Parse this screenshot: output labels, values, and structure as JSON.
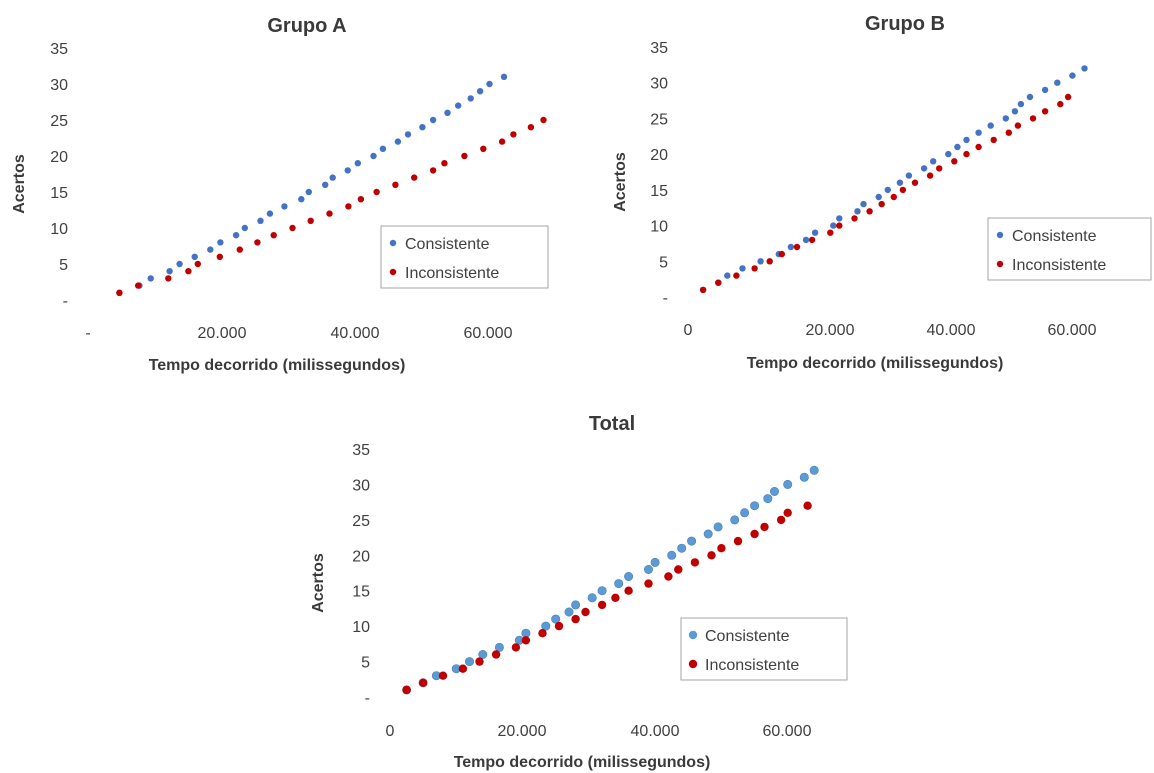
{
  "colors": {
    "consistente": "#4472c4",
    "inconsistente": "#c00000",
    "consistente_total": "#5b9bd5"
  },
  "chart_data": [
    {
      "type": "scatter",
      "title": "Grupo A",
      "xlabel": "Tempo decorrido (milissegundos)",
      "ylabel": "Acertos",
      "xlim": [
        -3000,
        70000
      ],
      "ylim": [
        0,
        35
      ],
      "x_ticks": [
        "-",
        "20.000",
        "40.000",
        "60.000"
      ],
      "y_ticks": [
        "-",
        "5",
        "10",
        "15",
        "20",
        "25",
        "30",
        "35"
      ],
      "legend": "bottom-right",
      "grid": false,
      "series": [
        {
          "name": "Consistente",
          "points": [
            [
              2000,
              1
            ],
            [
              5200,
              2
            ],
            [
              7000,
              3
            ],
            [
              10000,
              4
            ],
            [
              11600,
              5
            ],
            [
              14000,
              6
            ],
            [
              16500,
              7
            ],
            [
              18100,
              8
            ],
            [
              20600,
              9
            ],
            [
              22000,
              10
            ],
            [
              24500,
              11
            ],
            [
              26000,
              12
            ],
            [
              28300,
              13
            ],
            [
              31000,
              14
            ],
            [
              32200,
              15
            ],
            [
              34800,
              16
            ],
            [
              36000,
              17
            ],
            [
              38400,
              18
            ],
            [
              40000,
              19
            ],
            [
              42500,
              20
            ],
            [
              44000,
              21
            ],
            [
              46400,
              22
            ],
            [
              48000,
              23
            ],
            [
              50300,
              24
            ],
            [
              52000,
              25
            ],
            [
              54300,
              26
            ],
            [
              56000,
              27
            ],
            [
              58000,
              28
            ],
            [
              59500,
              29
            ],
            [
              61000,
              30
            ],
            [
              63300,
              31
            ]
          ]
        },
        {
          "name": "Inconsistente",
          "points": [
            [
              2000,
              1
            ],
            [
              5000,
              2
            ],
            [
              9800,
              3
            ],
            [
              13000,
              4
            ],
            [
              14500,
              5
            ],
            [
              18000,
              6
            ],
            [
              21200,
              7
            ],
            [
              24000,
              8
            ],
            [
              26600,
              9
            ],
            [
              29600,
              10
            ],
            [
              32500,
              11
            ],
            [
              35500,
              12
            ],
            [
              38500,
              13
            ],
            [
              40500,
              14
            ],
            [
              43000,
              15
            ],
            [
              46000,
              16
            ],
            [
              49000,
              17
            ],
            [
              52000,
              18
            ],
            [
              53800,
              19
            ],
            [
              57000,
              20
            ],
            [
              60000,
              21
            ],
            [
              63000,
              22
            ],
            [
              64800,
              23
            ],
            [
              67600,
              24
            ],
            [
              69600,
              25
            ]
          ]
        }
      ]
    },
    {
      "type": "scatter",
      "title": "Grupo B",
      "xlabel": "Tempo decorrido (milissegundos)",
      "ylabel": "Acertos",
      "xlim": [
        0,
        75000
      ],
      "ylim": [
        0,
        35
      ],
      "x_ticks": [
        "0",
        "20.000",
        "40.000",
        "60.000"
      ],
      "y_ticks": [
        "-",
        "5",
        "10",
        "15",
        "20",
        "25",
        "30",
        "35"
      ],
      "legend": "bottom-right",
      "grid": false,
      "series": [
        {
          "name": "Consistente",
          "points": [
            [
              2500,
              1
            ],
            [
              5000,
              2
            ],
            [
              6500,
              3
            ],
            [
              9000,
              4
            ],
            [
              12000,
              5
            ],
            [
              15000,
              6
            ],
            [
              17000,
              7
            ],
            [
              19500,
              8
            ],
            [
              21000,
              9
            ],
            [
              24000,
              10
            ],
            [
              25000,
              11
            ],
            [
              28000,
              12
            ],
            [
              29000,
              13
            ],
            [
              31500,
              14
            ],
            [
              33000,
              15
            ],
            [
              35000,
              16
            ],
            [
              36500,
              17
            ],
            [
              39000,
              18
            ],
            [
              40500,
              19
            ],
            [
              43000,
              20
            ],
            [
              44500,
              21
            ],
            [
              46000,
              22
            ],
            [
              48000,
              23
            ],
            [
              50000,
              24
            ],
            [
              52500,
              25
            ],
            [
              54000,
              26
            ],
            [
              55000,
              27
            ],
            [
              56500,
              28
            ],
            [
              59000,
              29
            ],
            [
              61000,
              30
            ],
            [
              63500,
              31
            ],
            [
              65500,
              32
            ]
          ]
        },
        {
          "name": "Inconsistente",
          "points": [
            [
              2500,
              1
            ],
            [
              5000,
              2
            ],
            [
              8000,
              3
            ],
            [
              11000,
              4
            ],
            [
              13500,
              5
            ],
            [
              15500,
              6
            ],
            [
              18000,
              7
            ],
            [
              20500,
              8
            ],
            [
              23500,
              9
            ],
            [
              25000,
              10
            ],
            [
              27500,
              11
            ],
            [
              30000,
              12
            ],
            [
              32000,
              13
            ],
            [
              34000,
              14
            ],
            [
              35500,
              15
            ],
            [
              37500,
              16
            ],
            [
              40000,
              17
            ],
            [
              41500,
              18
            ],
            [
              44000,
              19
            ],
            [
              46000,
              20
            ],
            [
              48000,
              21
            ],
            [
              50500,
              22
            ],
            [
              53000,
              23
            ],
            [
              54500,
              24
            ],
            [
              57000,
              25
            ],
            [
              59000,
              26
            ],
            [
              61500,
              27
            ],
            [
              62800,
              28
            ]
          ]
        }
      ]
    },
    {
      "type": "scatter",
      "title": "Total",
      "xlabel": "Tempo decorrido (milissegundos)",
      "ylabel": "Acertos",
      "xlim": [
        0,
        70000
      ],
      "ylim": [
        0,
        35
      ],
      "x_ticks": [
        "0",
        "20.000",
        "40.000",
        "60.000"
      ],
      "y_ticks": [
        "-",
        "5",
        "10",
        "15",
        "20",
        "25",
        "30",
        "35"
      ],
      "legend": "bottom-right",
      "grid": false,
      "series": [
        {
          "name": "Consistente",
          "points": [
            [
              2500,
              1
            ],
            [
              5000,
              2
            ],
            [
              7000,
              3
            ],
            [
              10000,
              4
            ],
            [
              12000,
              5
            ],
            [
              14000,
              6
            ],
            [
              16500,
              7
            ],
            [
              19500,
              8
            ],
            [
              20500,
              9
            ],
            [
              23500,
              10
            ],
            [
              25000,
              11
            ],
            [
              27000,
              12
            ],
            [
              28000,
              13
            ],
            [
              30500,
              14
            ],
            [
              32000,
              15
            ],
            [
              34500,
              16
            ],
            [
              36000,
              17
            ],
            [
              39000,
              18
            ],
            [
              40000,
              19
            ],
            [
              42500,
              20
            ],
            [
              44000,
              21
            ],
            [
              45500,
              22
            ],
            [
              48000,
              23
            ],
            [
              49500,
              24
            ],
            [
              52000,
              25
            ],
            [
              53500,
              26
            ],
            [
              55000,
              27
            ],
            [
              57000,
              28
            ],
            [
              58000,
              29
            ],
            [
              60000,
              30
            ],
            [
              62500,
              31
            ],
            [
              64000,
              32
            ]
          ]
        },
        {
          "name": "Inconsistente",
          "points": [
            [
              2500,
              1
            ],
            [
              5000,
              2
            ],
            [
              8000,
              3
            ],
            [
              11000,
              4
            ],
            [
              13500,
              5
            ],
            [
              16000,
              6
            ],
            [
              19000,
              7
            ],
            [
              20500,
              8
            ],
            [
              23000,
              9
            ],
            [
              25500,
              10
            ],
            [
              28000,
              11
            ],
            [
              29500,
              12
            ],
            [
              32000,
              13
            ],
            [
              34000,
              14
            ],
            [
              36000,
              15
            ],
            [
              39000,
              16
            ],
            [
              42000,
              17
            ],
            [
              43500,
              18
            ],
            [
              46000,
              19
            ],
            [
              48500,
              20
            ],
            [
              50000,
              21
            ],
            [
              52500,
              22
            ],
            [
              55000,
              23
            ],
            [
              56500,
              24
            ],
            [
              59000,
              25
            ],
            [
              60000,
              26
            ],
            [
              63000,
              27
            ]
          ]
        }
      ]
    }
  ]
}
